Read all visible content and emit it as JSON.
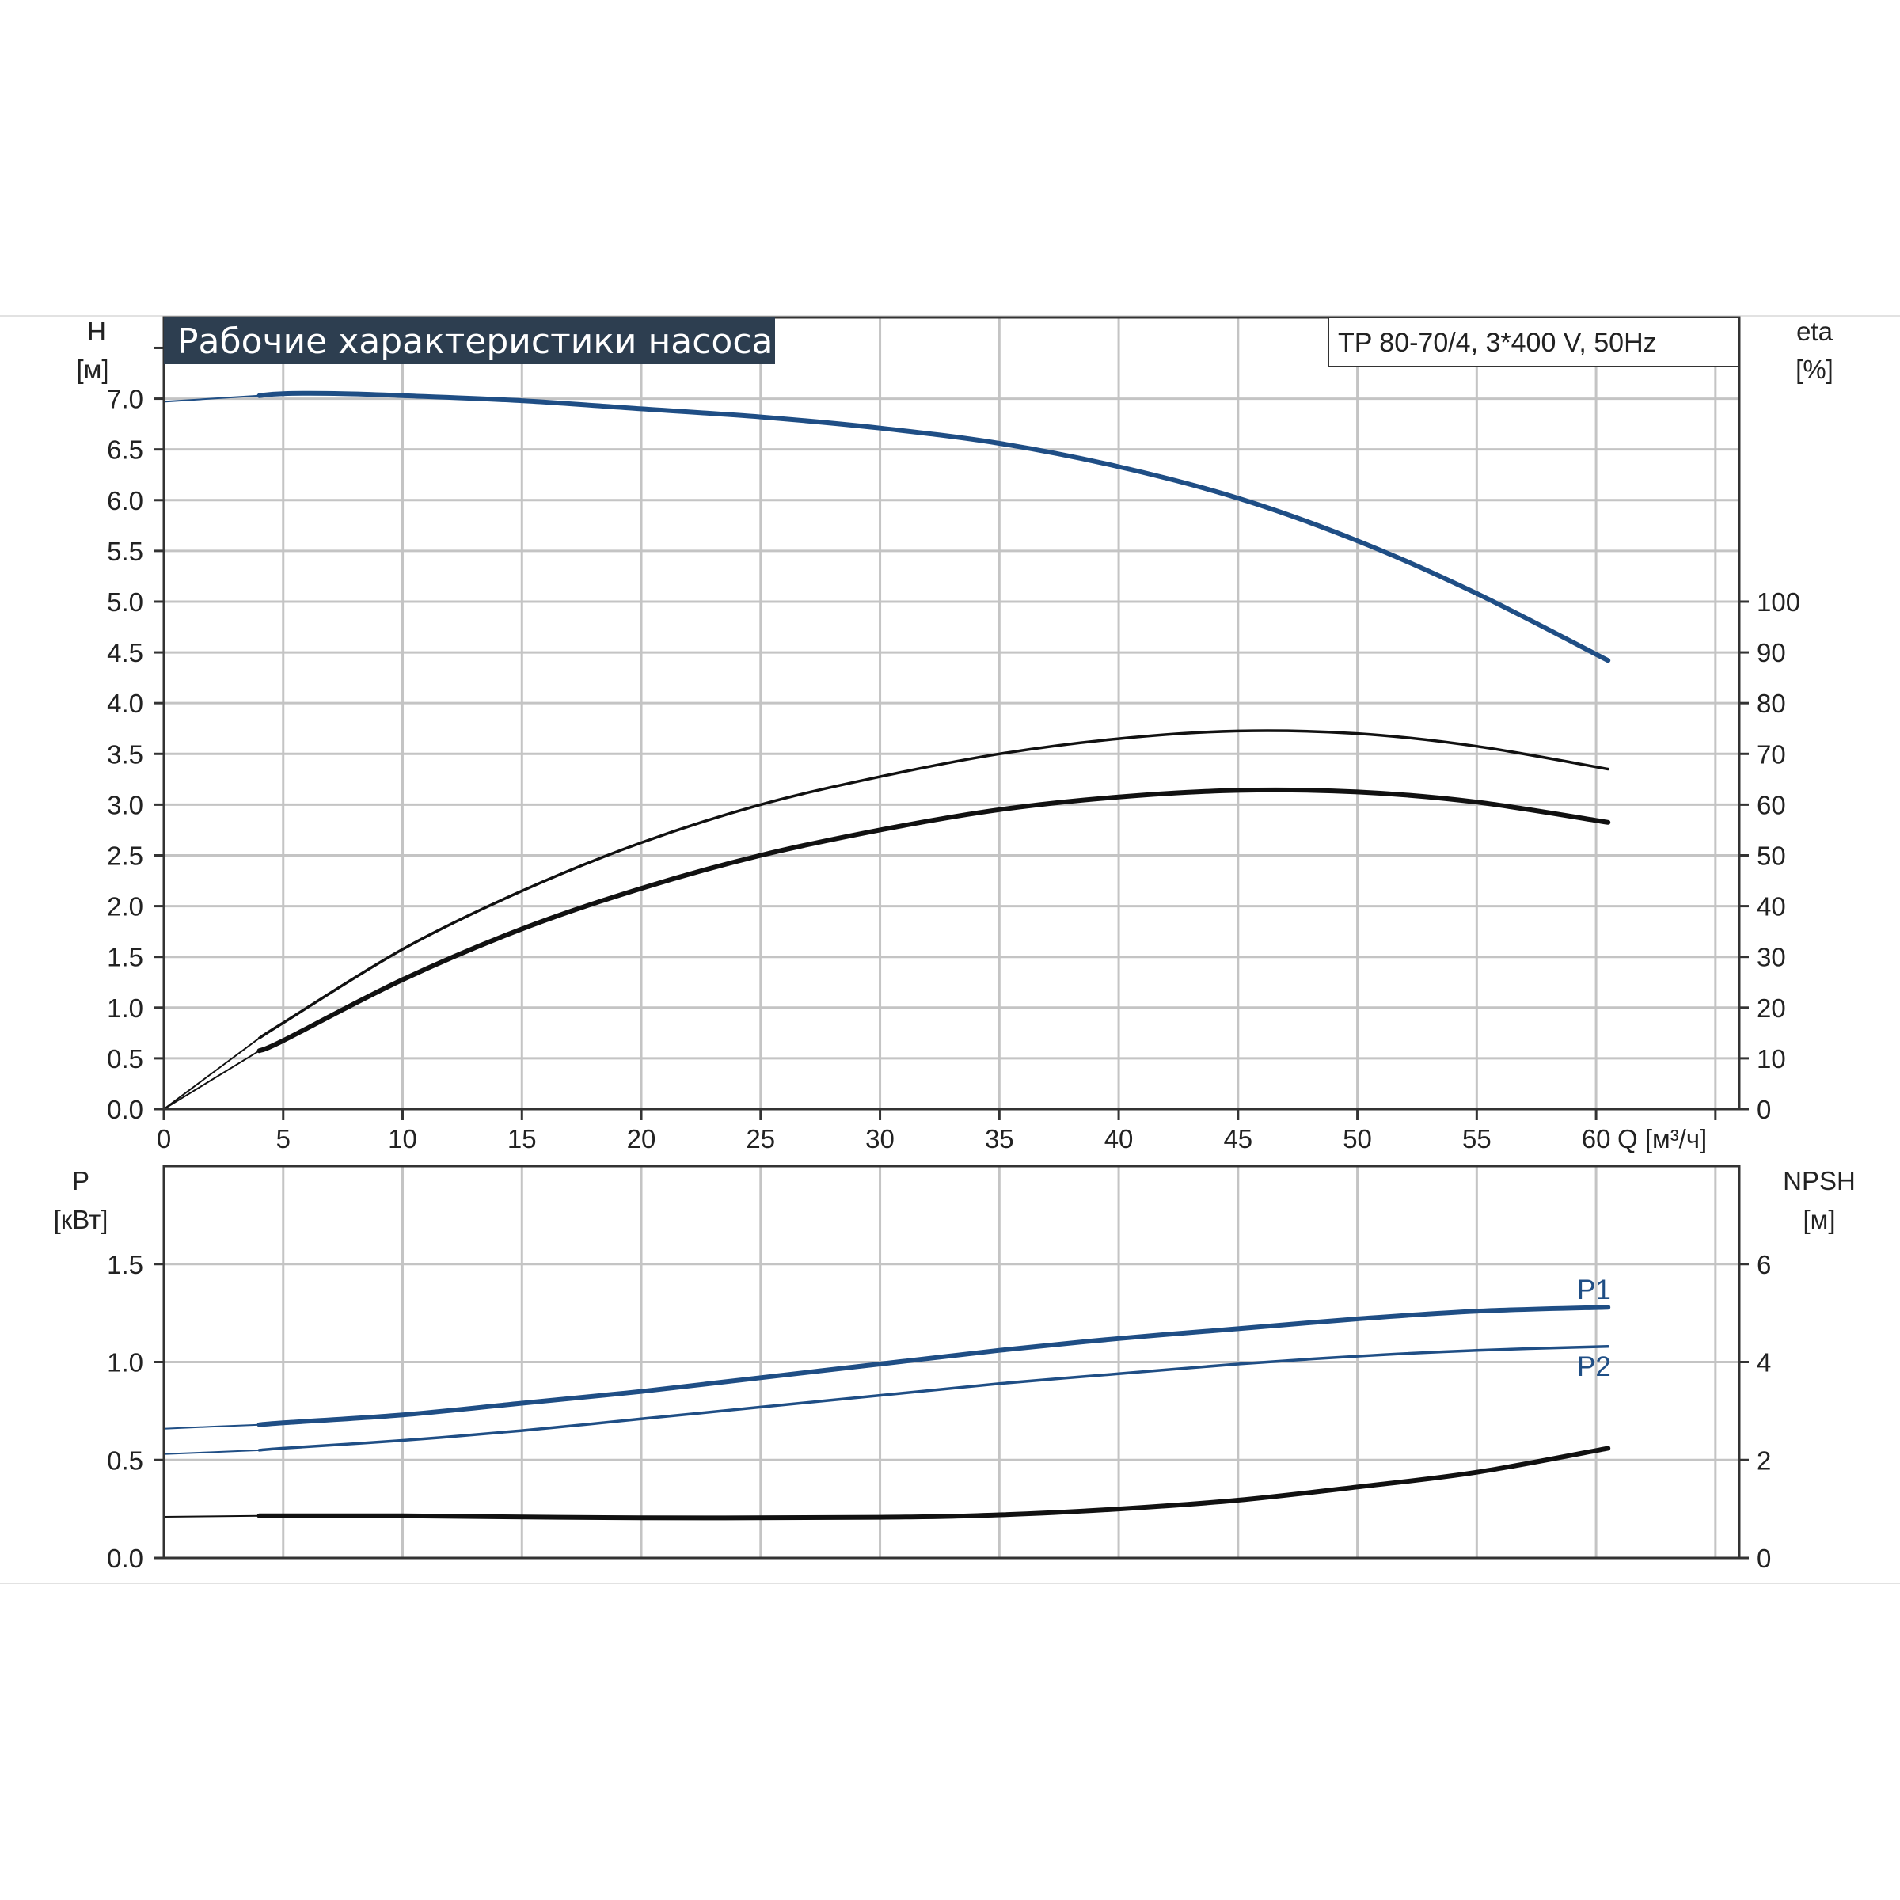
{
  "title": "Рабочие характеристики насоса",
  "model": "TP 80-70/4, 3*400 V, 50Hz",
  "colors": {
    "background": "#ffffff",
    "grid": "#c4c4c4",
    "frame": "#333333",
    "title_bg": "#2d3e50",
    "title_text": "#ffffff",
    "blue_curve": "#1f4e85",
    "black_curve": "#111111",
    "text": "#222222"
  },
  "chart_data": [
    {
      "type": "line",
      "name": "upper",
      "x_axis": {
        "label": "Q [м³/ч]",
        "range": [
          0,
          66
        ],
        "ticks": [
          0,
          5,
          10,
          15,
          20,
          25,
          30,
          35,
          40,
          45,
          50,
          55,
          60
        ],
        "tick_labels": [
          "0",
          "5",
          "10",
          "15",
          "20",
          "25",
          "30",
          "35",
          "40",
          "45",
          "50",
          "55",
          "60"
        ]
      },
      "y_left": {
        "label": "H",
        "unit": "[м]",
        "range": [
          0,
          7.8
        ],
        "ticks": [
          0,
          0.5,
          1,
          1.5,
          2,
          2.5,
          3,
          3.5,
          4,
          4.5,
          5,
          5.5,
          6,
          6.5,
          7
        ],
        "tick_labels": [
          "0.0",
          "0.5",
          "1.0",
          "1.5",
          "2.0",
          "2.5",
          "3.0",
          "3.5",
          "4.0",
          "4.5",
          "5.0",
          "5.5",
          "6.0",
          "6.5",
          "7.0"
        ]
      },
      "y_right": {
        "label": "eta",
        "unit": "[%]",
        "range": [
          0,
          156
        ],
        "ticks": [
          0,
          10,
          20,
          30,
          40,
          50,
          60,
          70,
          80,
          90,
          100
        ],
        "tick_labels": [
          "0",
          "10",
          "20",
          "30",
          "40",
          "50",
          "60",
          "70",
          "80",
          "90",
          "100"
        ]
      },
      "grid": true,
      "series": [
        {
          "axis": "left",
          "color": "#1f4e85",
          "style": "thick",
          "x": [
            0,
            4,
            5,
            7.5,
            10,
            15,
            20,
            25,
            30,
            35,
            40,
            45,
            50,
            55,
            60.5
          ],
          "y": [
            6.97,
            7.03,
            7.05,
            7.05,
            7.03,
            6.98,
            6.9,
            6.82,
            6.71,
            6.56,
            6.33,
            6.02,
            5.6,
            5.08,
            4.42
          ]
        },
        {
          "axis": "right",
          "color": "#111111",
          "style": "thin",
          "x": [
            0,
            4,
            5,
            10,
            15,
            20,
            25,
            30,
            35,
            40,
            45,
            50,
            55,
            60.5
          ],
          "y": [
            0,
            14,
            17,
            31.5,
            43,
            52.5,
            60,
            65.5,
            70,
            73,
            74.5,
            74,
            71.5,
            67
          ]
        },
        {
          "axis": "right",
          "color": "#111111",
          "style": "thick",
          "x": [
            0,
            4,
            5,
            10,
            15,
            20,
            25,
            30,
            35,
            40,
            45,
            50,
            55,
            60.5
          ],
          "y": [
            0,
            11.5,
            13.5,
            25.5,
            35.5,
            43.5,
            50,
            55,
            59,
            61.5,
            62.8,
            62.5,
            60.5,
            56.5
          ]
        }
      ]
    },
    {
      "type": "line",
      "name": "lower",
      "x_axis": {
        "range": [
          0,
          66
        ]
      },
      "y_left": {
        "label": "P",
        "unit": "[кВт]",
        "range": [
          0,
          2.0
        ],
        "ticks": [
          0,
          0.5,
          1.0,
          1.5
        ],
        "tick_labels": [
          "0.0",
          "0.5",
          "1.0",
          "1.5"
        ]
      },
      "y_right": {
        "label": "NPSH",
        "unit": "[м]",
        "range": [
          0,
          8
        ],
        "ticks": [
          0,
          2,
          4,
          6
        ],
        "tick_labels": [
          "0",
          "2",
          "4",
          "6"
        ]
      },
      "grid": true,
      "series": [
        {
          "name": "P1",
          "axis": "left",
          "color": "#1f4e85",
          "style": "thick",
          "x": [
            0,
            4,
            5,
            10,
            15,
            20,
            25,
            30,
            35,
            40,
            45,
            50,
            55,
            60.5
          ],
          "y": [
            0.66,
            0.68,
            0.69,
            0.73,
            0.79,
            0.85,
            0.92,
            0.99,
            1.06,
            1.12,
            1.17,
            1.22,
            1.26,
            1.28
          ]
        },
        {
          "name": "P2",
          "axis": "left",
          "color": "#1f4e85",
          "style": "thin",
          "x": [
            0,
            4,
            5,
            10,
            15,
            20,
            25,
            30,
            35,
            40,
            45,
            50,
            55,
            60.5
          ],
          "y": [
            0.53,
            0.55,
            0.56,
            0.6,
            0.65,
            0.71,
            0.77,
            0.83,
            0.89,
            0.94,
            0.99,
            1.03,
            1.06,
            1.08
          ]
        },
        {
          "axis": "right",
          "color": "#111111",
          "style": "thick",
          "x": [
            0,
            4,
            10,
            20,
            30,
            35,
            40,
            45,
            50,
            55,
            60.5
          ],
          "y": [
            0.84,
            0.86,
            0.86,
            0.82,
            0.83,
            0.88,
            1.0,
            1.18,
            1.45,
            1.75,
            2.24
          ]
        }
      ]
    }
  ]
}
